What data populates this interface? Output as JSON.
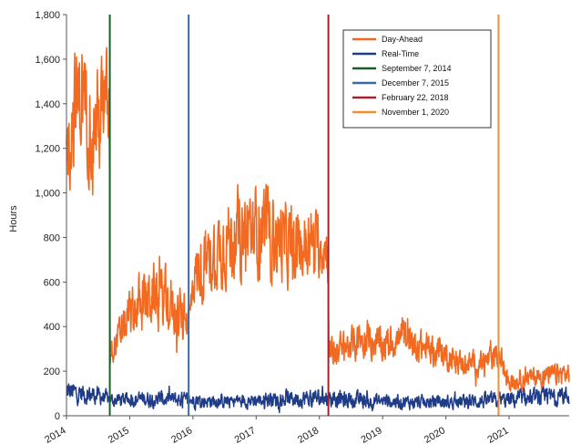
{
  "chart_data": {
    "type": "line",
    "title": "",
    "xlabel": "",
    "ylabel": "Hours",
    "ylim": [
      0,
      1800
    ],
    "yticks": [
      0,
      200,
      400,
      600,
      800,
      1000,
      1200,
      1400,
      1600,
      1800
    ],
    "ytick_labels": [
      "0",
      "200",
      "400",
      "600",
      "800",
      "1,000",
      "1,200",
      "1,400",
      "1,600",
      "1,800"
    ],
    "xlim": [
      2014.0,
      2021.95
    ],
    "xticks": [
      2014,
      2015,
      2016,
      2017,
      2018,
      2019,
      2020,
      2021
    ],
    "xtick_labels": [
      "2014",
      "2015",
      "2016",
      "2017",
      "2018",
      "2019",
      "2020",
      "2021"
    ],
    "grid": false,
    "legend_position": "top-right",
    "series": [
      {
        "name": "Day-Ahead",
        "color": "#F26A21",
        "x": [
          2014.0,
          2014.1,
          2014.25,
          2014.4,
          2014.55,
          2014.68,
          2014.69,
          2014.8,
          2015.0,
          2015.2,
          2015.4,
          2015.6,
          2015.85,
          2015.96,
          2016.0,
          2016.2,
          2016.5,
          2016.8,
          2017.1,
          2017.3,
          2017.6,
          2017.85,
          2018.1,
          2018.14,
          2018.15,
          2018.4,
          2018.7,
          2019.0,
          2019.3,
          2019.6,
          2019.9,
          2020.2,
          2020.5,
          2020.7,
          2020.83,
          2021.0,
          2021.3,
          2021.6,
          2021.9
        ],
        "y": [
          1150,
          1300,
          1350,
          1250,
          1300,
          1350,
          300,
          320,
          450,
          500,
          520,
          480,
          400,
          450,
          600,
          650,
          750,
          780,
          800,
          760,
          720,
          750,
          720,
          700,
          280,
          300,
          330,
          310,
          340,
          300,
          280,
          230,
          220,
          240,
          260,
          150,
          160,
          170,
          180
        ],
        "y_band": [
          1150,
          1350,
          1450,
          1300,
          1350,
          1400,
          300,
          330,
          450,
          520,
          540,
          520,
          420,
          450,
          620,
          680,
          780,
          820,
          850,
          800,
          740,
          780,
          760,
          730,
          280,
          310,
          340,
          320,
          350,
          310,
          290,
          240,
          230,
          250,
          270,
          150,
          170,
          180,
          190
        ],
        "amplitude": [
          320,
          360,
          400,
          360,
          380,
          350,
          80,
          120,
          170,
          200,
          210,
          200,
          170,
          130,
          190,
          230,
          270,
          290,
          300,
          280,
          250,
          240,
          210,
          200,
          100,
          110,
          120,
          110,
          120,
          110,
          100,
          80,
          80,
          85,
          90,
          60,
          65,
          70,
          75
        ]
      },
      {
        "name": "Real-Time",
        "color": "#1F3C88",
        "x": [
          2014.0,
          2014.2,
          2014.5,
          2014.7,
          2015.0,
          2015.5,
          2016.0,
          2016.5,
          2017.0,
          2017.5,
          2018.0,
          2018.5,
          2019.0,
          2019.5,
          2020.0,
          2020.5,
          2021.0,
          2021.5,
          2021.9
        ],
        "y": [
          110,
          100,
          90,
          70,
          75,
          75,
          70,
          65,
          70,
          75,
          80,
          70,
          65,
          60,
          60,
          65,
          70,
          80,
          90
        ],
        "amplitude": [
          75,
          70,
          60,
          45,
          50,
          55,
          50,
          45,
          50,
          55,
          60,
          55,
          50,
          45,
          45,
          50,
          55,
          60,
          65
        ]
      }
    ],
    "vlines": [
      {
        "name": "September 7, 2014",
        "x": 2014.685,
        "color": "#1B5E2B"
      },
      {
        "name": "December 7, 2015",
        "x": 2015.932,
        "color": "#3A6AA5"
      },
      {
        "name": "February 22, 2018",
        "x": 2018.142,
        "color": "#A3222B"
      },
      {
        "name": "November 1, 2020",
        "x": 2020.833,
        "color": "#F28E2B"
      }
    ]
  }
}
